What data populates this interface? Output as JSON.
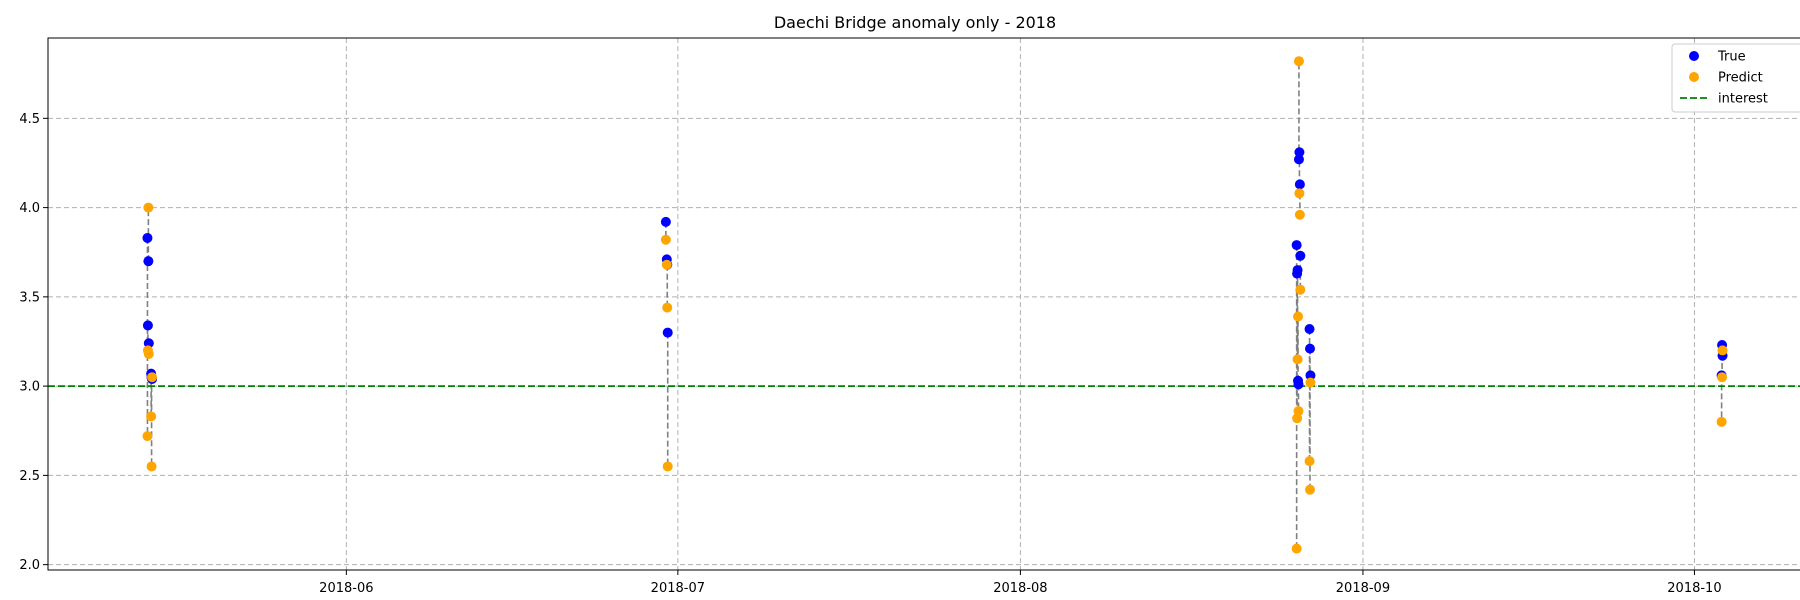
{
  "chart_data": {
    "type": "scatter",
    "title": "Daechi Bridge anomaly only - 2018",
    "xlabel": "",
    "ylabel": "",
    "x_axis_type": "date",
    "xlim": [
      "2018-05-05",
      "2018-10-12"
    ],
    "ylim": [
      1.97,
      4.95
    ],
    "x_ticks": [
      "2018-06",
      "2018-07",
      "2018-08",
      "2018-09",
      "2018-10"
    ],
    "x_tick_dates": [
      "2018-06-01",
      "2018-07-01",
      "2018-08-01",
      "2018-09-01",
      "2018-10-01"
    ],
    "y_ticks": [
      2.0,
      2.5,
      3.0,
      3.5,
      4.0,
      4.5
    ],
    "y_tick_labels": [
      "2.0",
      "2.5",
      "3.0",
      "3.5",
      "4.0",
      "4.5"
    ],
    "grid": true,
    "legend_position": "top-right",
    "colors": {
      "true": "#0000ff",
      "predict": "#ffa500",
      "interest": "#008000",
      "connector": "#808080"
    },
    "series": [
      {
        "name": "True",
        "points": [
          {
            "x": "2018-05-14 00:00",
            "y": 3.83
          },
          {
            "x": "2018-05-14 02:00",
            "y": 3.7
          },
          {
            "x": "2018-05-14 01:00",
            "y": 3.34
          },
          {
            "x": "2018-05-14 03:00",
            "y": 3.24
          },
          {
            "x": "2018-05-14 08:00",
            "y": 3.07
          },
          {
            "x": "2018-05-14 09:00",
            "y": 3.05
          },
          {
            "x": "2018-05-14 10:00",
            "y": 3.04
          },
          {
            "x": "2018-06-29 22:00",
            "y": 3.92
          },
          {
            "x": "2018-06-30 00:00",
            "y": 3.71
          },
          {
            "x": "2018-06-30 01:00",
            "y": 3.68
          },
          {
            "x": "2018-06-30 02:00",
            "y": 3.3
          },
          {
            "x": "2018-08-26 00:00",
            "y": 3.79
          },
          {
            "x": "2018-08-26 01:00",
            "y": 3.63
          },
          {
            "x": "2018-08-26 02:00",
            "y": 3.65
          },
          {
            "x": "2018-08-26 03:00",
            "y": 3.03
          },
          {
            "x": "2018-08-26 04:00",
            "y": 3.01
          },
          {
            "x": "2018-08-26 05:00",
            "y": 4.27
          },
          {
            "x": "2018-08-26 06:00",
            "y": 4.31
          },
          {
            "x": "2018-08-26 07:00",
            "y": 4.13
          },
          {
            "x": "2018-08-26 08:00",
            "y": 3.73
          },
          {
            "x": "2018-08-27 04:00",
            "y": 3.32
          },
          {
            "x": "2018-08-27 05:00",
            "y": 3.21
          },
          {
            "x": "2018-08-27 06:00",
            "y": 3.06
          },
          {
            "x": "2018-10-03 12:00",
            "y": 3.23
          },
          {
            "x": "2018-10-03 13:00",
            "y": 3.17
          },
          {
            "x": "2018-10-03 11:00",
            "y": 3.06
          }
        ]
      },
      {
        "name": "Predict",
        "points": [
          {
            "x": "2018-05-14 00:00",
            "y": 2.72
          },
          {
            "x": "2018-05-14 02:00",
            "y": 4.0
          },
          {
            "x": "2018-05-14 01:00",
            "y": 3.2
          },
          {
            "x": "2018-05-14 03:00",
            "y": 3.18
          },
          {
            "x": "2018-05-14 08:00",
            "y": 2.83
          },
          {
            "x": "2018-05-14 09:00",
            "y": 2.55
          },
          {
            "x": "2018-05-14 10:00",
            "y": 3.05
          },
          {
            "x": "2018-06-29 22:00",
            "y": 3.82
          },
          {
            "x": "2018-06-30 00:00",
            "y": 3.68
          },
          {
            "x": "2018-06-30 01:00",
            "y": 3.44
          },
          {
            "x": "2018-06-30 02:00",
            "y": 2.55
          },
          {
            "x": "2018-08-26 00:00",
            "y": 2.09
          },
          {
            "x": "2018-08-26 01:00",
            "y": 2.82
          },
          {
            "x": "2018-08-26 02:00",
            "y": 3.15
          },
          {
            "x": "2018-08-26 03:00",
            "y": 3.39
          },
          {
            "x": "2018-08-26 04:00",
            "y": 2.86
          },
          {
            "x": "2018-08-26 05:00",
            "y": 4.82
          },
          {
            "x": "2018-08-26 06:00",
            "y": 4.08
          },
          {
            "x": "2018-08-26 07:00",
            "y": 3.96
          },
          {
            "x": "2018-08-26 08:00",
            "y": 3.54
          },
          {
            "x": "2018-08-27 04:00",
            "y": 2.58
          },
          {
            "x": "2018-08-27 05:00",
            "y": 2.42
          },
          {
            "x": "2018-08-27 06:00",
            "y": 3.02
          },
          {
            "x": "2018-10-03 12:00",
            "y": 3.05
          },
          {
            "x": "2018-10-03 13:00",
            "y": 3.2
          },
          {
            "x": "2018-10-03 11:00",
            "y": 2.8
          }
        ]
      }
    ],
    "reference_line": {
      "name": "interest",
      "y": 3.0,
      "style": "dashed"
    }
  }
}
